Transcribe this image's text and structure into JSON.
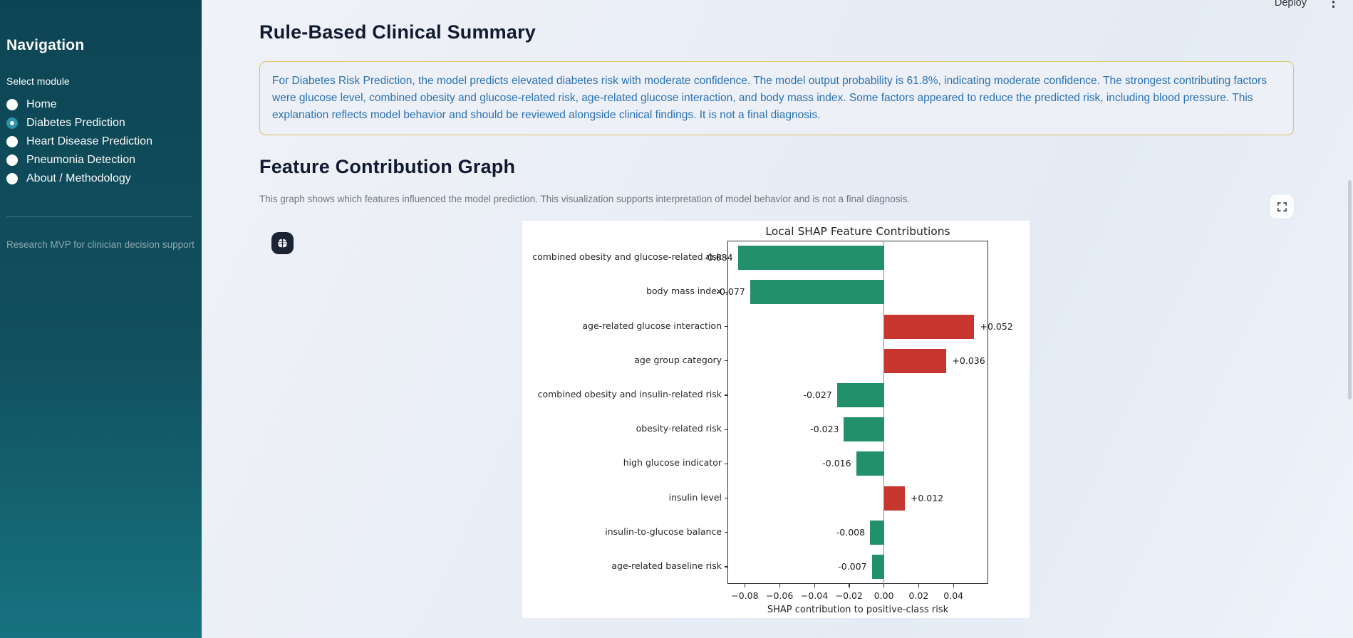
{
  "header": {
    "deploy_label": "Deploy"
  },
  "sidebar": {
    "title": "Navigation",
    "select_label": "Select module",
    "items": [
      {
        "label": "Home",
        "selected": false
      },
      {
        "label": "Diabetes Prediction",
        "selected": true
      },
      {
        "label": "Heart Disease Prediction",
        "selected": false
      },
      {
        "label": "Pneumonia Detection",
        "selected": false
      },
      {
        "label": "About / Methodology",
        "selected": false
      }
    ],
    "caption": "Research MVP for clinician decision support"
  },
  "main": {
    "summary_heading": "Rule-Based Clinical Summary",
    "summary_text": "For Diabetes Risk Prediction, the model predicts elevated diabetes risk with moderate confidence. The model output probability is 61.8%, indicating moderate confidence. The strongest contributing factors were glucose level, combined obesity and glucose-related risk, age-related glucose interaction, and body mass index. Some factors appeared to reduce the predicted risk, including blood pressure. This explanation reflects model behavior and should be reviewed alongside clinical findings. It is not a final diagnosis.",
    "graph_heading": "Feature Contribution Graph",
    "graph_caption": "This graph shows which features influenced the model prediction. This visualization supports interpretation of model behavior and is not a final diagnosis."
  },
  "chart_data": {
    "type": "bar",
    "orientation": "horizontal",
    "title": "Local SHAP Feature Contributions",
    "xlabel": "SHAP contribution to positive-class risk",
    "categories": [
      "combined obesity and glucose-related risk",
      "body mass index",
      "age-related glucose interaction",
      "age group category",
      "combined obesity and insulin-related risk",
      "obesity-related risk",
      "high glucose indicator",
      "insulin level",
      "insulin-to-glucose balance",
      "age-related baseline risk"
    ],
    "values": [
      -0.084,
      -0.077,
      0.052,
      0.036,
      -0.027,
      -0.023,
      -0.016,
      0.012,
      -0.008,
      -0.007
    ],
    "value_labels": [
      "-0.084",
      "-0.077",
      "+0.052",
      "+0.036",
      "-0.027",
      "-0.023",
      "-0.016",
      "+0.012",
      "-0.008",
      "-0.007"
    ],
    "xlim": [
      -0.09,
      0.06
    ],
    "xticks": [
      -0.08,
      -0.06,
      -0.04,
      -0.02,
      0,
      0.02,
      0.04
    ],
    "xtick_labels": [
      "−0.08",
      "−0.06",
      "−0.04",
      "−0.02",
      "0.00",
      "0.02",
      "0.04"
    ],
    "negative_color": "#23906c",
    "positive_color": "#c6352e",
    "grid": false,
    "zero_line": true,
    "legend": null
  },
  "colors": {
    "sidebar_top": "#0d4554",
    "sidebar_bottom": "#177380",
    "accent_teal": "#2d93a8",
    "info_border": "#dcc266",
    "info_text": "#2a72b5",
    "bar_negative": "#23906c",
    "bar_positive": "#c6352e"
  }
}
